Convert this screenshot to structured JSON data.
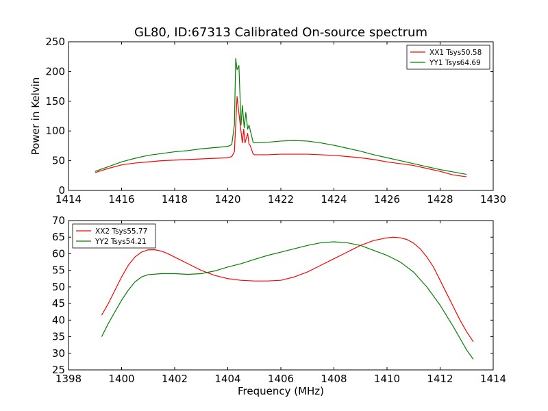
{
  "title": "GL80, ID:67313 Calibrated On-source spectrum",
  "chart_data": [
    {
      "type": "line",
      "xlabel": "",
      "ylabel": "Power in Kelvin",
      "xlim": [
        1414,
        1430
      ],
      "ylim": [
        0,
        250
      ],
      "xticks": [
        "1414",
        "1416",
        "1418",
        "1420",
        "1422",
        "1424",
        "1426",
        "1428",
        "1430"
      ],
      "yticks": [
        "0",
        "50",
        "100",
        "150",
        "200",
        "250"
      ],
      "legend_position": "top-right",
      "grid": false,
      "series": [
        {
          "name": "XX1 Tsys50.58",
          "color": "#ff0000",
          "x": [
            1415.0,
            1415.5,
            1416.0,
            1416.5,
            1417.0,
            1417.5,
            1418.0,
            1418.5,
            1419.0,
            1419.5,
            1420.0,
            1420.15,
            1420.25,
            1420.35,
            1420.45,
            1420.55,
            1420.6,
            1420.65,
            1420.75,
            1420.8,
            1420.85,
            1420.95,
            1421.0,
            1421.5,
            1422.0,
            1422.5,
            1423.0,
            1423.5,
            1424.0,
            1424.5,
            1425.0,
            1425.5,
            1426.0,
            1426.5,
            1427.0,
            1427.5,
            1428.0,
            1428.5,
            1429.0
          ],
          "y": [
            30,
            37,
            43,
            46,
            48,
            50,
            51,
            52,
            53,
            54,
            55,
            57,
            65,
            158,
            118,
            80,
            103,
            80,
            96,
            78,
            75,
            62,
            60,
            60,
            61,
            61,
            61,
            60,
            59,
            57,
            55,
            52,
            48,
            45,
            42,
            37,
            32,
            26,
            23
          ]
        },
        {
          "name": "YY1 Tsys64.69",
          "color": "#008000",
          "x": [
            1415.0,
            1415.5,
            1416.0,
            1416.5,
            1417.0,
            1417.5,
            1418.0,
            1418.5,
            1419.0,
            1419.5,
            1420.0,
            1420.15,
            1420.25,
            1420.3,
            1420.35,
            1420.42,
            1420.5,
            1420.55,
            1420.62,
            1420.68,
            1420.75,
            1420.8,
            1420.88,
            1420.95,
            1421.0,
            1421.5,
            1422.0,
            1422.5,
            1423.0,
            1423.5,
            1424.0,
            1424.5,
            1425.0,
            1425.5,
            1426.0,
            1426.5,
            1427.0,
            1427.5,
            1428.0,
            1428.5,
            1429.0
          ],
          "y": [
            32,
            40,
            48,
            54,
            59,
            62,
            65,
            67,
            70,
            72,
            74,
            77,
            110,
            222,
            203,
            210,
            110,
            143,
            105,
            131,
            103,
            110,
            95,
            82,
            80,
            81,
            83,
            84,
            83,
            80,
            76,
            71,
            66,
            60,
            55,
            50,
            45,
            40,
            35,
            31,
            27
          ]
        }
      ]
    },
    {
      "type": "line",
      "xlabel": "Frequency (MHz)",
      "ylabel": "",
      "xlim": [
        1398,
        1414
      ],
      "ylim": [
        25,
        70
      ],
      "xticks": [
        "1398",
        "1400",
        "1402",
        "1404",
        "1406",
        "1408",
        "1410",
        "1412",
        "1414"
      ],
      "yticks": [
        "25",
        "30",
        "35",
        "40",
        "45",
        "50",
        "55",
        "60",
        "65",
        "70"
      ],
      "legend_position": "top-left",
      "grid": false,
      "series": [
        {
          "name": "XX2 Tsys55.77",
          "color": "#ff0000",
          "x": [
            1399.25,
            1399.5,
            1399.75,
            1400.0,
            1400.25,
            1400.5,
            1400.75,
            1401.0,
            1401.25,
            1401.5,
            1401.75,
            1402.0,
            1402.5,
            1403.0,
            1403.5,
            1404.0,
            1404.5,
            1405.0,
            1405.5,
            1406.0,
            1406.5,
            1407.0,
            1407.5,
            1408.0,
            1408.5,
            1409.0,
            1409.5,
            1410.0,
            1410.25,
            1410.5,
            1410.75,
            1411.0,
            1411.25,
            1411.5,
            1411.75,
            1412.0,
            1412.25,
            1412.5,
            1412.75,
            1413.0,
            1413.25
          ],
          "y": [
            41.5,
            45,
            49,
            53,
            56.5,
            59,
            60.5,
            61.2,
            61.2,
            60.8,
            60,
            59,
            57,
            55,
            53.5,
            52.5,
            52,
            51.8,
            51.8,
            52,
            53,
            54.5,
            56.5,
            58.5,
            60.5,
            62.5,
            64,
            64.8,
            65,
            64.8,
            64.3,
            63.2,
            61.5,
            59,
            56,
            52,
            48,
            44,
            40,
            36.5,
            33.5
          ]
        },
        {
          "name": "YY2 Tsys54.21",
          "color": "#008000",
          "x": [
            1399.25,
            1399.5,
            1399.75,
            1400.0,
            1400.25,
            1400.5,
            1400.75,
            1401.0,
            1401.5,
            1402.0,
            1402.5,
            1403.0,
            1403.5,
            1404.0,
            1404.5,
            1405.0,
            1405.5,
            1406.0,
            1406.5,
            1407.0,
            1407.5,
            1408.0,
            1408.5,
            1409.0,
            1409.5,
            1410.0,
            1410.5,
            1411.0,
            1411.5,
            1412.0,
            1412.5,
            1413.0,
            1413.25
          ],
          "y": [
            35,
            39,
            42.5,
            46,
            49,
            51.5,
            53,
            53.7,
            54,
            54,
            53.8,
            54,
            54.8,
            56,
            57,
            58.3,
            59.5,
            60.5,
            61.5,
            62.5,
            63.3,
            63.6,
            63.3,
            62.5,
            61,
            59.5,
            57.5,
            54.5,
            50,
            44.5,
            38,
            31,
            28.2
          ]
        }
      ]
    }
  ]
}
